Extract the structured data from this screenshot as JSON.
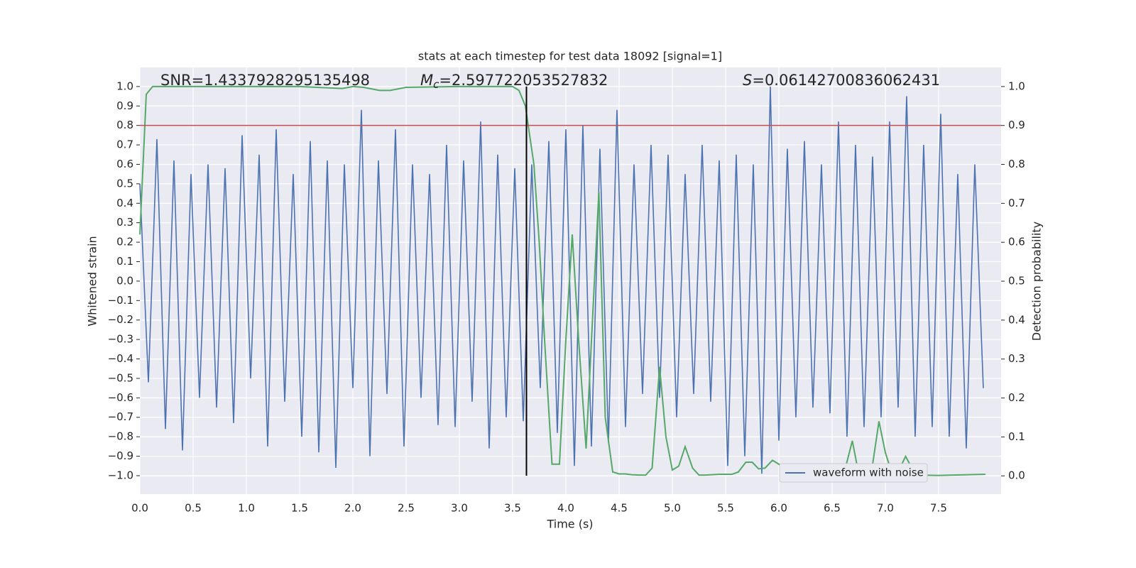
{
  "chart_data": {
    "type": "line",
    "title": "stats at each timestep for test data 18092 [signal=1]",
    "xlabel": "Time (s)",
    "ylabel": "Whitened strain",
    "y2label": "Detection probability",
    "background": "#eaeaf2",
    "grid": true,
    "legend": "lower right",
    "xlim": [
      0,
      8.087
    ],
    "ylim": [
      -1.095,
      1.098
    ],
    "y2lim": [
      -0.047,
      1.049
    ],
    "xticks": [
      {
        "value": 0,
        "label": "0.0"
      },
      0.5,
      {
        "value": 1,
        "label": "1.0"
      },
      1.5,
      {
        "value": 2,
        "label": "2.0"
      },
      2.5,
      {
        "value": 3,
        "label": "3.0"
      },
      3.5,
      {
        "value": 4,
        "label": "4.0"
      },
      4.5,
      {
        "value": 5,
        "label": "5.0"
      },
      5.5,
      {
        "value": 6,
        "label": "6.0"
      },
      6.5,
      {
        "value": 7,
        "label": "7.0"
      },
      7.5
    ],
    "yticks": [
      {
        "value": -1,
        "label": "−1.0"
      },
      {
        "value": -0.9,
        "label": "−0.9"
      },
      {
        "value": -0.8,
        "label": "−0.8"
      },
      {
        "value": -0.7,
        "label": "−0.7"
      },
      {
        "value": -0.6,
        "label": "−0.6"
      },
      {
        "value": -0.5,
        "label": "−0.5"
      },
      {
        "value": -0.4,
        "label": "−0.4"
      },
      {
        "value": -0.3,
        "label": "−0.3"
      },
      {
        "value": -0.2,
        "label": "−0.2"
      },
      {
        "value": -0.1,
        "label": "−0.1"
      },
      {
        "value": 0,
        "label": "0.0"
      },
      0.1,
      0.2,
      0.3,
      0.4,
      0.5,
      0.6,
      0.7,
      0.8,
      0.9,
      {
        "value": 1,
        "label": "1.0"
      }
    ],
    "y2ticks": [
      {
        "value": 0,
        "label": "0.0"
      },
      0.1,
      0.2,
      0.3,
      0.4,
      0.5,
      0.6,
      0.7,
      0.8,
      0.9,
      {
        "value": 1,
        "label": "1.0"
      }
    ],
    "snr_annotation": "SNR=1.4337928295135498",
    "mc_annotation": {
      "symbol": "M",
      "subscript": "c",
      "text": "=2.597722053527832"
    },
    "s_annotation": {
      "symbol": "S",
      "text": "=0.06142700836062431"
    },
    "hlines": [
      {
        "y": 0.8,
        "color": "#c44e52"
      }
    ],
    "vlines": [
      {
        "x": 3.63,
        "ymin": -1,
        "ymax": 1,
        "color": "#000000"
      }
    ],
    "series": [
      {
        "name": "waveform with noise",
        "color": "#4c72b0",
        "x": [
          0,
          0.08,
          0.16,
          0.24,
          0.32,
          0.4,
          0.48,
          0.56,
          0.64,
          0.72,
          0.8,
          0.88,
          0.96,
          1.04,
          1.12,
          1.2,
          1.28,
          1.36,
          1.44,
          1.52,
          1.6,
          1.68,
          1.76,
          1.84,
          1.92,
          2,
          2.08,
          2.16,
          2.24,
          2.32,
          2.4,
          2.48,
          2.56,
          2.64,
          2.72,
          2.8,
          2.88,
          2.96,
          3.04,
          3.12,
          3.2,
          3.28,
          3.36,
          3.44,
          3.52,
          3.6,
          3.68,
          3.76,
          3.84,
          3.92,
          4,
          4.08,
          4.16,
          4.24,
          4.32,
          4.4,
          4.48,
          4.56,
          4.64,
          4.72,
          4.8,
          4.88,
          4.96,
          5.04,
          5.12,
          5.2,
          5.28,
          5.36,
          5.44,
          5.52,
          5.6,
          5.68,
          5.76,
          5.84,
          5.92,
          6,
          6.08,
          6.16,
          6.24,
          6.32,
          6.4,
          6.48,
          6.56,
          6.64,
          6.72,
          6.8,
          6.88,
          6.96,
          7.04,
          7.12,
          7.2,
          7.28,
          7.36,
          7.44,
          7.52,
          7.6,
          7.68,
          7.76,
          7.84,
          7.92
        ],
        "values": [
          0.5,
          -0.52,
          0.73,
          -0.76,
          0.62,
          -0.87,
          0.55,
          -0.6,
          0.6,
          -0.65,
          0.58,
          -0.73,
          0.75,
          -0.5,
          0.65,
          -0.85,
          0.78,
          -0.62,
          0.55,
          -0.8,
          0.72,
          -0.88,
          0.62,
          -0.96,
          0.6,
          -0.55,
          0.88,
          -0.9,
          0.62,
          -0.58,
          0.78,
          -0.85,
          0.6,
          -0.6,
          0.55,
          -0.74,
          0.7,
          -0.75,
          0.62,
          -0.62,
          0.82,
          -0.86,
          0.65,
          -0.7,
          0.58,
          -0.72,
          0.6,
          -0.55,
          0.72,
          -0.78,
          0.78,
          -0.95,
          0.8,
          -0.85,
          0.68,
          -0.83,
          0.88,
          -0.75,
          0.6,
          -0.58,
          0.7,
          -0.6,
          0.65,
          -0.7,
          0.55,
          -0.58,
          0.7,
          -0.62,
          0.62,
          -0.95,
          0.65,
          -0.9,
          0.6,
          -0.99,
          1.0,
          -0.82,
          0.68,
          -0.7,
          0.72,
          -0.65,
          0.6,
          -0.68,
          0.82,
          -0.8,
          0.7,
          -0.75,
          0.64,
          -0.7,
          0.82,
          -0.65,
          0.95,
          -0.8,
          0.7,
          -0.75,
          0.86,
          -0.8,
          0.55,
          -0.86,
          0.6,
          -0.55
        ]
      },
      {
        "color": "#55a868",
        "axis": "y2",
        "x": [
          0,
          0.06,
          0.12,
          0.5,
          1,
          1.5,
          1.9,
          2,
          2.1,
          2.25,
          2.35,
          2.5,
          3,
          3.5,
          3.56,
          3.62,
          3.7,
          3.75,
          3.8,
          3.87,
          3.94,
          4,
          4.06,
          4.12,
          4.19,
          4.25,
          4.31,
          4.37,
          4.44,
          4.5,
          4.56,
          4.62,
          4.69,
          4.75,
          4.81,
          4.88,
          4.94,
          5,
          5.06,
          5.12,
          5.19,
          5.25,
          5.31,
          5.44,
          5.56,
          5.62,
          5.69,
          5.75,
          5.81,
          5.87,
          5.94,
          6,
          6.06,
          6.12,
          6.25,
          6.5,
          6.62,
          6.69,
          6.75,
          6.81,
          6.87,
          6.94,
          7,
          7.06,
          7.12,
          7.19,
          7.25,
          7.31,
          7.5,
          7.94
        ],
        "values": [
          0.62,
          0.98,
          1.0,
          1.0,
          1.0,
          1.0,
          0.995,
          1.0,
          0.998,
          0.99,
          0.99,
          0.998,
          1.0,
          1.0,
          0.99,
          0.95,
          0.8,
          0.6,
          0.35,
          0.03,
          0.03,
          0.35,
          0.62,
          0.35,
          0.07,
          0.4,
          0.73,
          0.15,
          0.01,
          0.005,
          0.005,
          0.003,
          0.002,
          0.002,
          0.02,
          0.28,
          0.1,
          0.015,
          0.025,
          0.075,
          0.02,
          0.002,
          0.002,
          0.004,
          0.004,
          0.01,
          0.035,
          0.035,
          0.018,
          0.02,
          0.04,
          0.03,
          0.02,
          0.015,
          0.003,
          0.001,
          0.015,
          0.09,
          0.005,
          0.0,
          0.01,
          0.14,
          0.06,
          0.008,
          0.01,
          0.05,
          0.02,
          0.002,
          0.001,
          0.004
        ]
      }
    ]
  }
}
